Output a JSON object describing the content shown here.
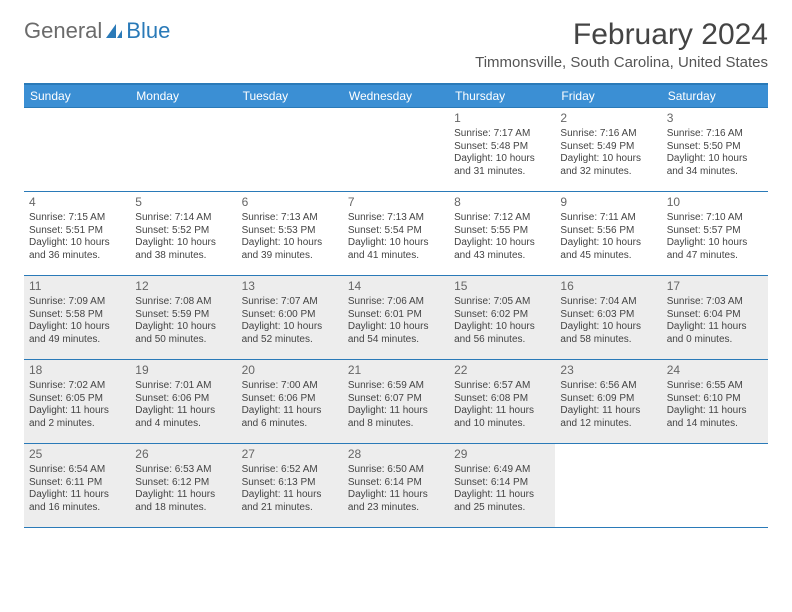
{
  "logo": {
    "text_a": "General",
    "text_b": "Blue"
  },
  "title": "February 2024",
  "location": "Timmonsville, South Carolina, United States",
  "colors": {
    "header_bg": "#3b8fd4",
    "border": "#2a7ab8",
    "shaded": "#ededed",
    "text": "#444444",
    "logo_gray": "#6b6b6b",
    "logo_blue": "#2a7ab8"
  },
  "day_headers": [
    "Sunday",
    "Monday",
    "Tuesday",
    "Wednesday",
    "Thursday",
    "Friday",
    "Saturday"
  ],
  "weeks": [
    [
      {
        "day": "",
        "sunrise": "",
        "sunset": "",
        "daylight": "",
        "shaded": false
      },
      {
        "day": "",
        "sunrise": "",
        "sunset": "",
        "daylight": "",
        "shaded": false
      },
      {
        "day": "",
        "sunrise": "",
        "sunset": "",
        "daylight": "",
        "shaded": false
      },
      {
        "day": "",
        "sunrise": "",
        "sunset": "",
        "daylight": "",
        "shaded": false
      },
      {
        "day": "1",
        "sunrise": "Sunrise: 7:17 AM",
        "sunset": "Sunset: 5:48 PM",
        "daylight": "Daylight: 10 hours and 31 minutes.",
        "shaded": false
      },
      {
        "day": "2",
        "sunrise": "Sunrise: 7:16 AM",
        "sunset": "Sunset: 5:49 PM",
        "daylight": "Daylight: 10 hours and 32 minutes.",
        "shaded": false
      },
      {
        "day": "3",
        "sunrise": "Sunrise: 7:16 AM",
        "sunset": "Sunset: 5:50 PM",
        "daylight": "Daylight: 10 hours and 34 minutes.",
        "shaded": false
      }
    ],
    [
      {
        "day": "4",
        "sunrise": "Sunrise: 7:15 AM",
        "sunset": "Sunset: 5:51 PM",
        "daylight": "Daylight: 10 hours and 36 minutes.",
        "shaded": false
      },
      {
        "day": "5",
        "sunrise": "Sunrise: 7:14 AM",
        "sunset": "Sunset: 5:52 PM",
        "daylight": "Daylight: 10 hours and 38 minutes.",
        "shaded": false
      },
      {
        "day": "6",
        "sunrise": "Sunrise: 7:13 AM",
        "sunset": "Sunset: 5:53 PM",
        "daylight": "Daylight: 10 hours and 39 minutes.",
        "shaded": false
      },
      {
        "day": "7",
        "sunrise": "Sunrise: 7:13 AM",
        "sunset": "Sunset: 5:54 PM",
        "daylight": "Daylight: 10 hours and 41 minutes.",
        "shaded": false
      },
      {
        "day": "8",
        "sunrise": "Sunrise: 7:12 AM",
        "sunset": "Sunset: 5:55 PM",
        "daylight": "Daylight: 10 hours and 43 minutes.",
        "shaded": false
      },
      {
        "day": "9",
        "sunrise": "Sunrise: 7:11 AM",
        "sunset": "Sunset: 5:56 PM",
        "daylight": "Daylight: 10 hours and 45 minutes.",
        "shaded": false
      },
      {
        "day": "10",
        "sunrise": "Sunrise: 7:10 AM",
        "sunset": "Sunset: 5:57 PM",
        "daylight": "Daylight: 10 hours and 47 minutes.",
        "shaded": false
      }
    ],
    [
      {
        "day": "11",
        "sunrise": "Sunrise: 7:09 AM",
        "sunset": "Sunset: 5:58 PM",
        "daylight": "Daylight: 10 hours and 49 minutes.",
        "shaded": true
      },
      {
        "day": "12",
        "sunrise": "Sunrise: 7:08 AM",
        "sunset": "Sunset: 5:59 PM",
        "daylight": "Daylight: 10 hours and 50 minutes.",
        "shaded": true
      },
      {
        "day": "13",
        "sunrise": "Sunrise: 7:07 AM",
        "sunset": "Sunset: 6:00 PM",
        "daylight": "Daylight: 10 hours and 52 minutes.",
        "shaded": true
      },
      {
        "day": "14",
        "sunrise": "Sunrise: 7:06 AM",
        "sunset": "Sunset: 6:01 PM",
        "daylight": "Daylight: 10 hours and 54 minutes.",
        "shaded": true
      },
      {
        "day": "15",
        "sunrise": "Sunrise: 7:05 AM",
        "sunset": "Sunset: 6:02 PM",
        "daylight": "Daylight: 10 hours and 56 minutes.",
        "shaded": true
      },
      {
        "day": "16",
        "sunrise": "Sunrise: 7:04 AM",
        "sunset": "Sunset: 6:03 PM",
        "daylight": "Daylight: 10 hours and 58 minutes.",
        "shaded": true
      },
      {
        "day": "17",
        "sunrise": "Sunrise: 7:03 AM",
        "sunset": "Sunset: 6:04 PM",
        "daylight": "Daylight: 11 hours and 0 minutes.",
        "shaded": true
      }
    ],
    [
      {
        "day": "18",
        "sunrise": "Sunrise: 7:02 AM",
        "sunset": "Sunset: 6:05 PM",
        "daylight": "Daylight: 11 hours and 2 minutes.",
        "shaded": true
      },
      {
        "day": "19",
        "sunrise": "Sunrise: 7:01 AM",
        "sunset": "Sunset: 6:06 PM",
        "daylight": "Daylight: 11 hours and 4 minutes.",
        "shaded": true
      },
      {
        "day": "20",
        "sunrise": "Sunrise: 7:00 AM",
        "sunset": "Sunset: 6:06 PM",
        "daylight": "Daylight: 11 hours and 6 minutes.",
        "shaded": true
      },
      {
        "day": "21",
        "sunrise": "Sunrise: 6:59 AM",
        "sunset": "Sunset: 6:07 PM",
        "daylight": "Daylight: 11 hours and 8 minutes.",
        "shaded": true
      },
      {
        "day": "22",
        "sunrise": "Sunrise: 6:57 AM",
        "sunset": "Sunset: 6:08 PM",
        "daylight": "Daylight: 11 hours and 10 minutes.",
        "shaded": true
      },
      {
        "day": "23",
        "sunrise": "Sunrise: 6:56 AM",
        "sunset": "Sunset: 6:09 PM",
        "daylight": "Daylight: 11 hours and 12 minutes.",
        "shaded": true
      },
      {
        "day": "24",
        "sunrise": "Sunrise: 6:55 AM",
        "sunset": "Sunset: 6:10 PM",
        "daylight": "Daylight: 11 hours and 14 minutes.",
        "shaded": true
      }
    ],
    [
      {
        "day": "25",
        "sunrise": "Sunrise: 6:54 AM",
        "sunset": "Sunset: 6:11 PM",
        "daylight": "Daylight: 11 hours and 16 minutes.",
        "shaded": true
      },
      {
        "day": "26",
        "sunrise": "Sunrise: 6:53 AM",
        "sunset": "Sunset: 6:12 PM",
        "daylight": "Daylight: 11 hours and 18 minutes.",
        "shaded": true
      },
      {
        "day": "27",
        "sunrise": "Sunrise: 6:52 AM",
        "sunset": "Sunset: 6:13 PM",
        "daylight": "Daylight: 11 hours and 21 minutes.",
        "shaded": true
      },
      {
        "day": "28",
        "sunrise": "Sunrise: 6:50 AM",
        "sunset": "Sunset: 6:14 PM",
        "daylight": "Daylight: 11 hours and 23 minutes.",
        "shaded": true
      },
      {
        "day": "29",
        "sunrise": "Sunrise: 6:49 AM",
        "sunset": "Sunset: 6:14 PM",
        "daylight": "Daylight: 11 hours and 25 minutes.",
        "shaded": true
      },
      {
        "day": "",
        "sunrise": "",
        "sunset": "",
        "daylight": "",
        "shaded": false
      },
      {
        "day": "",
        "sunrise": "",
        "sunset": "",
        "daylight": "",
        "shaded": false
      }
    ]
  ]
}
